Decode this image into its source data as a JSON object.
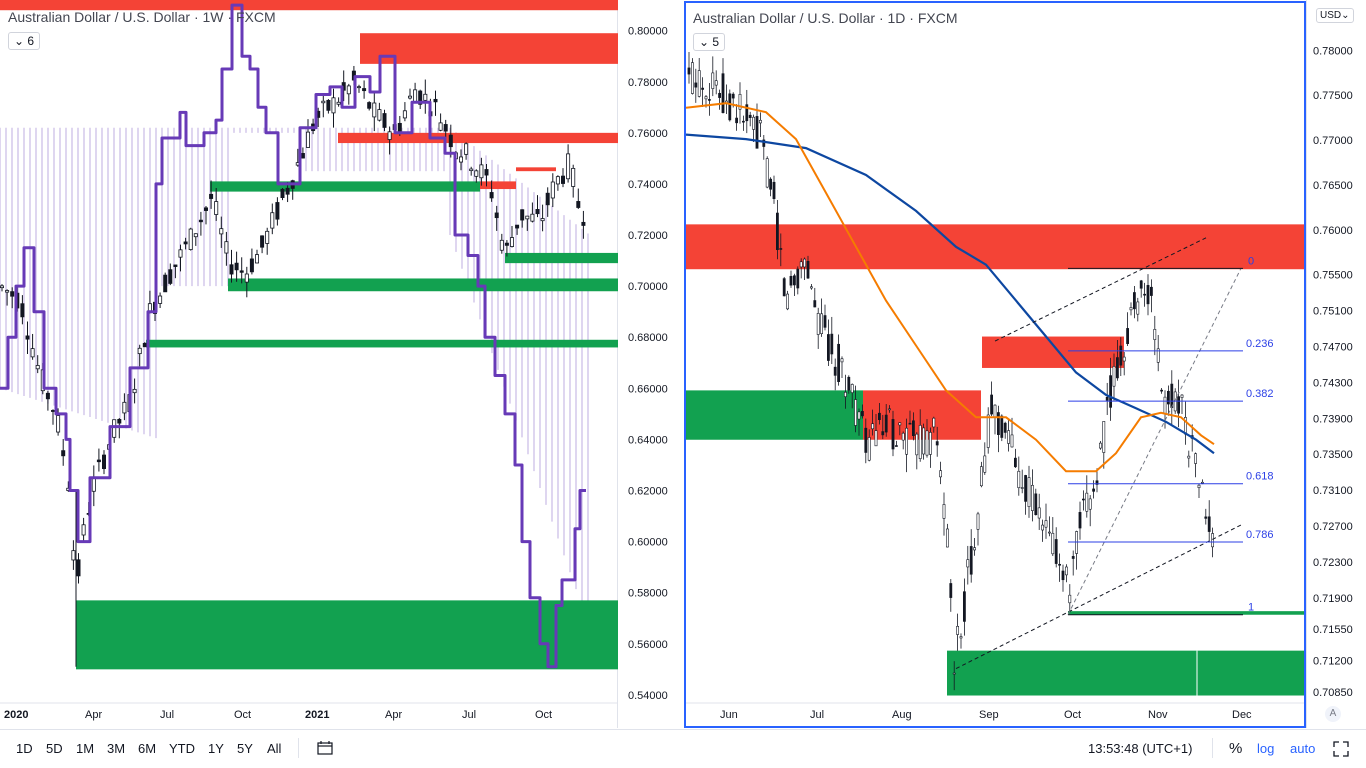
{
  "left_chart": {
    "title": "Australian Dollar / U.S. Dollar · 1W · FXCM",
    "interval_value": "6",
    "price_ticks": [
      "0.80000",
      "0.78000",
      "0.76000",
      "0.74000",
      "0.72000",
      "0.70000",
      "0.68000",
      "0.66000",
      "0.64000",
      "0.62000",
      "0.60000",
      "0.58000",
      "0.56000",
      "0.54000"
    ],
    "time_labels": [
      "2020",
      "Apr",
      "Jul",
      "Oct",
      "2021",
      "Apr",
      "Jul",
      "Oct"
    ]
  },
  "right_chart": {
    "title": "Australian Dollar / U.S. Dollar · 1D · FXCM",
    "interval_value": "5",
    "currency": "USD",
    "price_ticks": [
      "0.78000",
      "0.77500",
      "0.77000",
      "0.76500",
      "0.76000",
      "0.75500",
      "0.75100",
      "0.74700",
      "0.74300",
      "0.73900",
      "0.73500",
      "0.73100",
      "0.72700",
      "0.72300",
      "0.71900",
      "0.71550",
      "0.71200",
      "0.70850"
    ],
    "time_labels": [
      "Jun",
      "Jul",
      "Aug",
      "Sep",
      "Oct",
      "Nov",
      "Dec"
    ],
    "fib_levels": [
      "0",
      "0.236",
      "0.382",
      "0.618",
      "0.786",
      "1"
    ],
    "auto_scale_label": "A"
  },
  "toolbar": {
    "ranges": [
      "1D",
      "5D",
      "1M",
      "3M",
      "6M",
      "YTD",
      "1Y",
      "5Y",
      "All"
    ],
    "time": "13:53:48 (UTC+1)",
    "percent": "%",
    "log": "log",
    "auto": "auto"
  },
  "colors": {
    "bull": "#ffffff",
    "bear": "#131722",
    "supply_zone": "#f44336",
    "demand_zone": "#12a150",
    "cloud_line": "#673ab7",
    "ma_fast": "#f57c00",
    "ma_slow": "#0d47a1",
    "fib": "#2b3fe6",
    "accent": "#2962ff"
  },
  "chart_data": [
    {
      "type": "candlestick",
      "title": "Australian Dollar / U.S. Dollar · 1W · FXCM",
      "ylim": [
        0.538,
        0.812
      ],
      "x_labels": [
        "2020",
        "Apr",
        "Jul",
        "Oct",
        "2021",
        "Apr",
        "Jul",
        "Oct"
      ],
      "supply_zones": [
        [
          0.787,
          0.799
        ],
        [
          0.756,
          0.76
        ],
        [
          0.738,
          0.741
        ],
        [
          0.745,
          0.746
        ]
      ],
      "demand_zones": [
        [
          0.55,
          0.577
        ],
        [
          0.709,
          0.713
        ],
        [
          0.698,
          0.703
        ],
        [
          0.737,
          0.741
        ],
        [
          0.676,
          0.679
        ]
      ],
      "series": [
        {
          "name": "candles",
          "values": "weekly OHLC"
        }
      ]
    },
    {
      "type": "candlestick",
      "title": "Australian Dollar / U.S. Dollar · 1D · FXCM",
      "ylim": [
        0.7075,
        0.7855
      ],
      "x_labels": [
        "Jun",
        "Jul",
        "Aug",
        "Sep",
        "Oct",
        "Nov",
        "Dec"
      ],
      "supply_zones": [
        [
          0.7555,
          0.7605
        ],
        [
          0.7445,
          0.748
        ],
        [
          0.7365,
          0.742
        ]
      ],
      "demand_zones": [
        [
          0.708,
          0.713
        ],
        [
          0.717,
          0.7174
        ],
        [
          0.7365,
          0.742
        ]
      ],
      "fibonacci": [
        {
          "level": "0",
          "price": 0.7556
        },
        {
          "level": "0.236",
          "price": 0.7464
        },
        {
          "level": "0.382",
          "price": 0.7408
        },
        {
          "level": "0.618",
          "price": 0.7316
        },
        {
          "level": "0.786",
          "price": 0.7251
        },
        {
          "level": "1",
          "price": 0.717
        }
      ]
    }
  ]
}
